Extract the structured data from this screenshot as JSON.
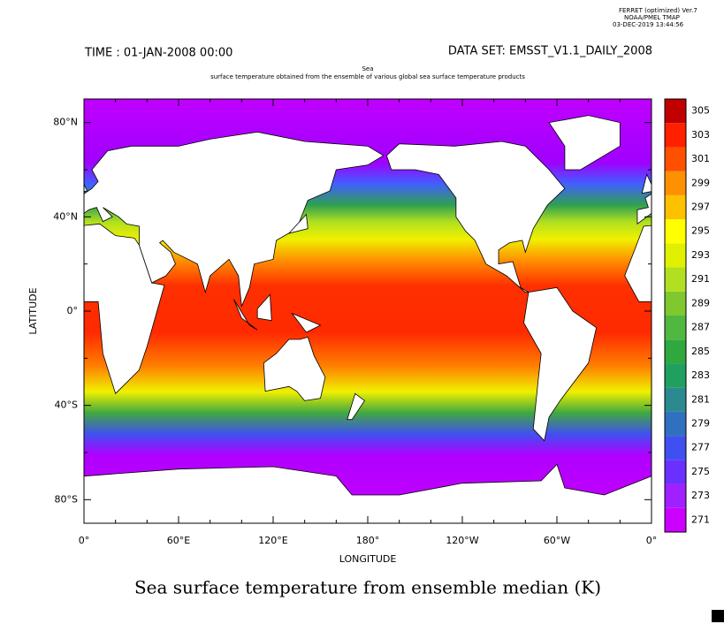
{
  "header": {
    "software": "FERRET (optimized) Ver.7",
    "lab": "NOAA/PMEL TMAP",
    "date": "03-DEC-2019 13:44:56",
    "time": "TIME : 01-JAN-2008 00:00",
    "dataset": "DATA SET: EMSST_V1.1_DAILY_2008"
  },
  "map": {
    "title_line1": "Sea",
    "title_line2": "surface temperature obtained from the ensemble of various global sea surface temperature products",
    "x_label": "LONGITUDE",
    "y_label": "LATITUDE",
    "x_ticks": [
      "0°",
      "60°E",
      "120°E",
      "180°",
      "120°W",
      "60°W",
      "0°"
    ],
    "y_ticks": [
      "80°N",
      "40°N",
      "0°",
      "40°S",
      "80°S"
    ]
  },
  "colorbar": {
    "levels": [
      271,
      273,
      275,
      277,
      279,
      281,
      283,
      285,
      287,
      289,
      291,
      293,
      295,
      297,
      299,
      301,
      303,
      305
    ],
    "colors": [
      "#cc00ff",
      "#a020ff",
      "#6a30ff",
      "#4050f0",
      "#3070c0",
      "#2a8a90",
      "#20a060",
      "#30a840",
      "#50b840",
      "#80c830",
      "#b0e020",
      "#e0f000",
      "#ffff00",
      "#ffc000",
      "#ff9000",
      "#ff5000",
      "#ff2000",
      "#c00000"
    ]
  },
  "caption": "Sea surface temperature from ensemble median (K)"
}
